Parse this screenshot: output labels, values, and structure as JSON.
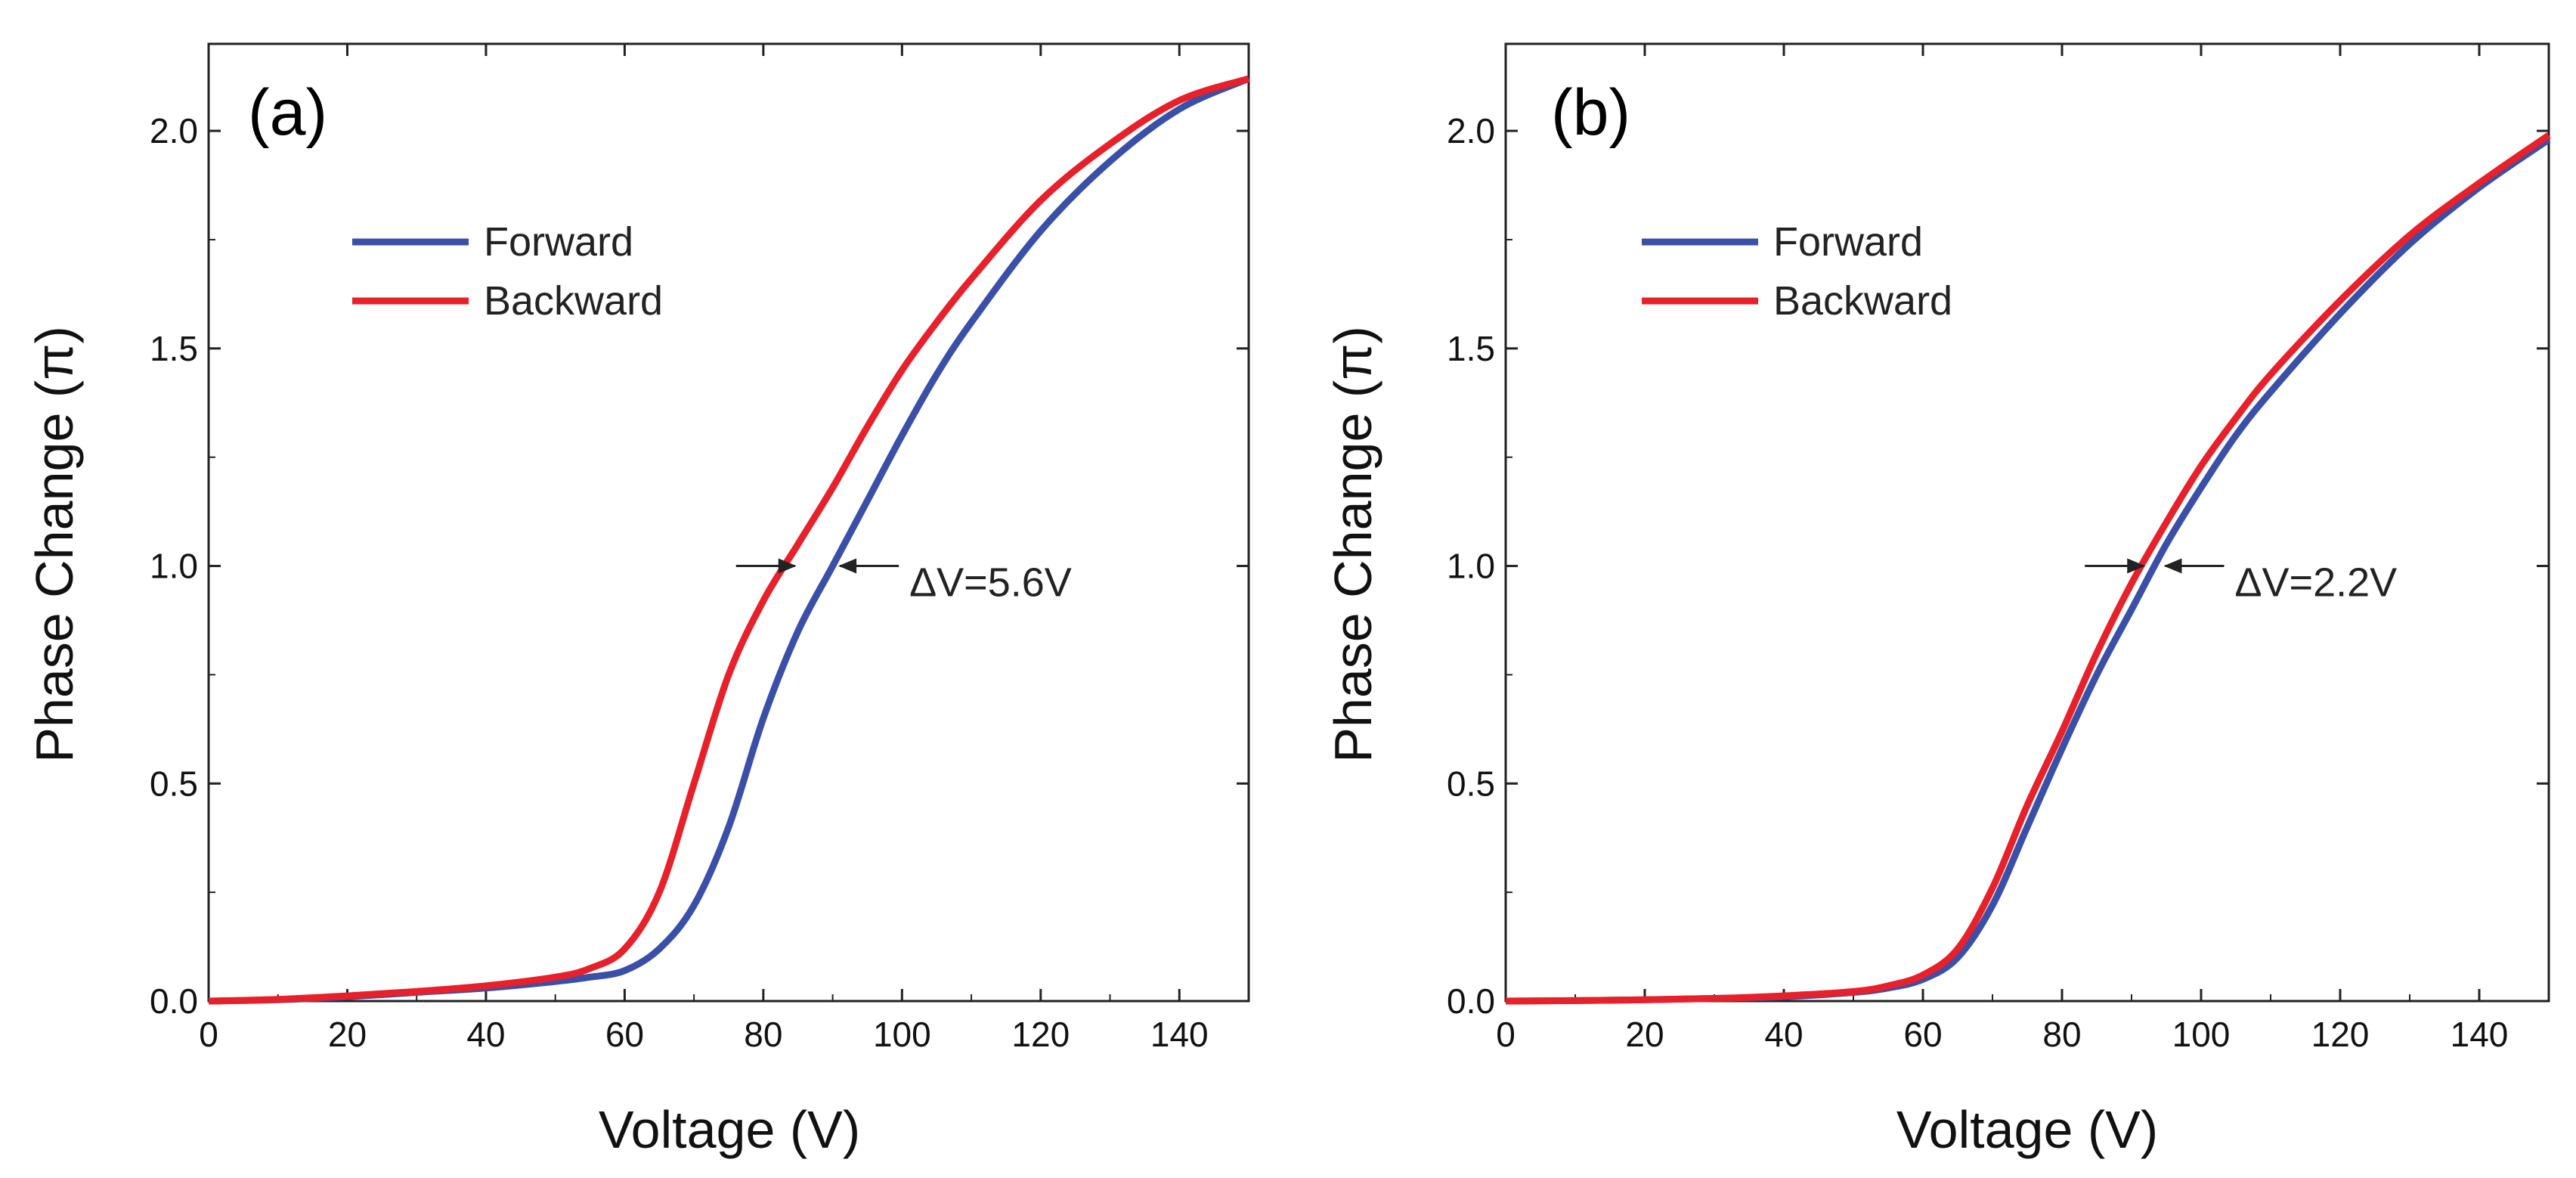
{
  "chart_data": [
    {
      "type": "line",
      "panel_label": "(a)",
      "xlabel": "Voltage (V)",
      "ylabel": "Phase Change (π)",
      "xlim": [
        0,
        150
      ],
      "ylim": [
        0,
        2.2
      ],
      "xticks": [
        0,
        20,
        40,
        60,
        80,
        100,
        120,
        140
      ],
      "yticks": [
        0.0,
        0.5,
        1.0,
        1.5,
        2.0
      ],
      "ytick_labels": [
        "0.0",
        "0.5",
        "1.0",
        "1.5",
        "2.0"
      ],
      "legend_position": "upper-left",
      "series": [
        {
          "name": "Forward",
          "color": "#3a4fa8",
          "x": [
            0,
            10,
            20,
            30,
            40,
            50,
            55,
            60,
            65,
            70,
            75,
            80,
            85,
            90,
            95,
            100,
            105,
            110,
            120,
            130,
            140,
            150
          ],
          "y": [
            0.0,
            0.003,
            0.01,
            0.02,
            0.03,
            0.045,
            0.055,
            0.07,
            0.12,
            0.22,
            0.4,
            0.65,
            0.85,
            1.0,
            1.15,
            1.3,
            1.44,
            1.56,
            1.77,
            1.93,
            2.05,
            2.12
          ]
        },
        {
          "name": "Backward",
          "color": "#e8202a",
          "x": [
            0,
            10,
            20,
            30,
            40,
            50,
            55,
            60,
            65,
            70,
            75,
            80,
            85,
            90,
            95,
            100,
            105,
            110,
            120,
            130,
            140,
            150
          ],
          "y": [
            0.0,
            0.004,
            0.012,
            0.022,
            0.035,
            0.055,
            0.075,
            0.12,
            0.25,
            0.5,
            0.75,
            0.92,
            1.05,
            1.18,
            1.32,
            1.45,
            1.56,
            1.66,
            1.84,
            1.97,
            2.07,
            2.12
          ]
        }
      ],
      "annotation": {
        "text": "ΔV=5.6V",
        "y": 1.0,
        "x_left": 85,
        "x_right": 90.6
      }
    },
    {
      "type": "line",
      "panel_label": "(b)",
      "xlabel": "Voltage (V)",
      "ylabel": "Phase Change (π)",
      "xlim": [
        0,
        150
      ],
      "ylim": [
        0,
        2.2
      ],
      "xticks": [
        0,
        20,
        40,
        60,
        80,
        100,
        120,
        140
      ],
      "yticks": [
        0.0,
        0.5,
        1.0,
        1.5,
        2.0
      ],
      "ytick_labels": [
        "0.0",
        "0.5",
        "1.0",
        "1.5",
        "2.0"
      ],
      "legend_position": "upper-left",
      "series": [
        {
          "name": "Forward",
          "color": "#3a4fa8",
          "x": [
            0,
            10,
            20,
            30,
            40,
            50,
            55,
            60,
            65,
            70,
            75,
            80,
            85,
            90,
            95,
            100,
            105,
            110,
            120,
            130,
            140,
            150
          ],
          "y": [
            0.0,
            0.001,
            0.003,
            0.006,
            0.01,
            0.02,
            0.03,
            0.05,
            0.1,
            0.22,
            0.4,
            0.58,
            0.75,
            0.9,
            1.05,
            1.18,
            1.3,
            1.4,
            1.58,
            1.74,
            1.87,
            1.98
          ]
        },
        {
          "name": "Backward",
          "color": "#e8202a",
          "x": [
            0,
            10,
            20,
            30,
            40,
            50,
            55,
            60,
            65,
            70,
            75,
            80,
            85,
            90,
            95,
            100,
            105,
            110,
            120,
            130,
            140,
            150
          ],
          "y": [
            0.0,
            0.001,
            0.003,
            0.006,
            0.012,
            0.022,
            0.035,
            0.06,
            0.12,
            0.26,
            0.45,
            0.62,
            0.8,
            0.96,
            1.1,
            1.23,
            1.34,
            1.44,
            1.61,
            1.76,
            1.88,
            1.99
          ]
        }
      ],
      "annotation": {
        "text": "ΔV=2.2V",
        "y": 1.0,
        "x_left": 92.2,
        "x_right": 94.4
      }
    }
  ]
}
